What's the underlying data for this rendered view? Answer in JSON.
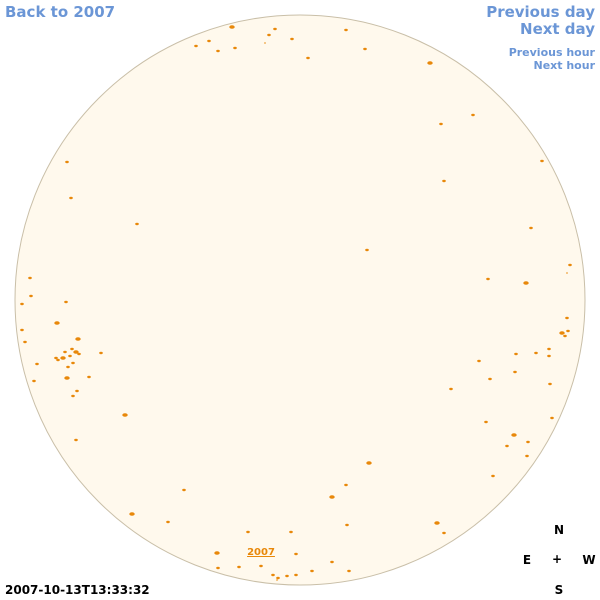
{
  "nav": {
    "back": "Back to 2007",
    "previous_day": "Previous day",
    "next_day": "Next day",
    "previous_hour": "Previous hour",
    "next_hour": "Next hour"
  },
  "image": {
    "year_link": "2007",
    "timestamp": "2007-10-13T13:33:32",
    "disk_color": "#fff9ed",
    "spot_color": "#e8880a"
  },
  "compass": {
    "north": "N",
    "south": "S",
    "east": "E",
    "west": "W",
    "center": "+"
  }
}
